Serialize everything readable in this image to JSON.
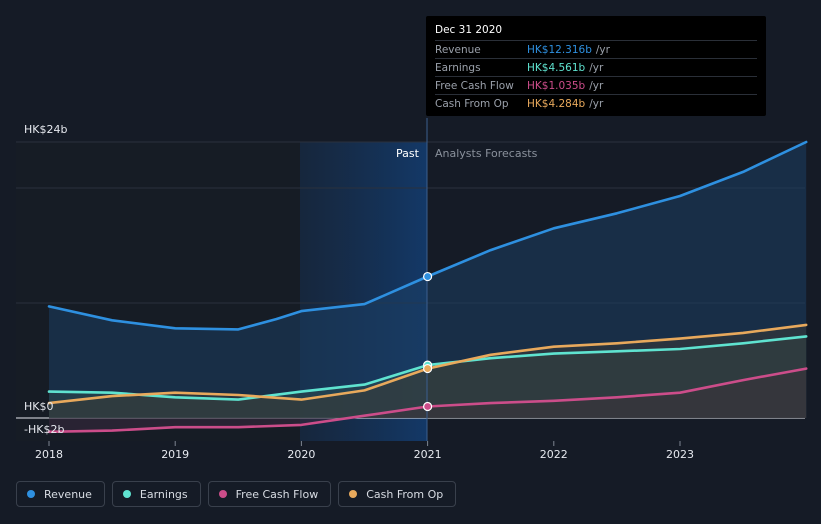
{
  "chart_data": {
    "type": "line",
    "y_axis": {
      "top_label": "HK$24b",
      "zero_label": "HK$0",
      "neg_label": "-HK$2b",
      "ylim": [
        -2,
        24
      ]
    },
    "x": [
      "2018",
      "2019",
      "2020",
      "2021",
      "2022",
      "2023"
    ],
    "divider": {
      "past_label": "Past",
      "forecast_label": "Analysts Forecasts",
      "at": "Dec 31 2020"
    },
    "series": [
      {
        "name": "Revenue",
        "color": "#2e90e0",
        "points": [
          [
            2018.0,
            9.7
          ],
          [
            2018.5,
            8.5
          ],
          [
            2019.0,
            7.8
          ],
          [
            2019.5,
            7.7
          ],
          [
            2019.8,
            8.6
          ],
          [
            2020.0,
            9.3
          ],
          [
            2020.5,
            9.9
          ],
          [
            2021.0,
            12.3
          ],
          [
            2021.5,
            14.6
          ],
          [
            2022.0,
            16.5
          ],
          [
            2022.5,
            17.8
          ],
          [
            2023.0,
            19.3
          ],
          [
            2023.5,
            21.4
          ],
          [
            2024.0,
            24.0
          ]
        ]
      },
      {
        "name": "Earnings",
        "color": "#5fe3d0",
        "points": [
          [
            2018.0,
            2.3
          ],
          [
            2018.5,
            2.2
          ],
          [
            2019.0,
            1.8
          ],
          [
            2019.5,
            1.6
          ],
          [
            2020.0,
            2.3
          ],
          [
            2020.5,
            2.9
          ],
          [
            2021.0,
            4.6
          ],
          [
            2021.5,
            5.2
          ],
          [
            2022.0,
            5.6
          ],
          [
            2022.5,
            5.8
          ],
          [
            2023.0,
            6.0
          ],
          [
            2023.5,
            6.5
          ],
          [
            2024.0,
            7.1
          ]
        ]
      },
      {
        "name": "Free Cash Flow",
        "color": "#cc4d8a",
        "points": [
          [
            2018.0,
            -1.2
          ],
          [
            2018.5,
            -1.1
          ],
          [
            2019.0,
            -0.8
          ],
          [
            2019.5,
            -0.8
          ],
          [
            2020.0,
            -0.6
          ],
          [
            2020.5,
            0.2
          ],
          [
            2021.0,
            1.0
          ],
          [
            2021.5,
            1.3
          ],
          [
            2022.0,
            1.5
          ],
          [
            2022.5,
            1.8
          ],
          [
            2023.0,
            2.2
          ],
          [
            2023.5,
            3.3
          ],
          [
            2024.0,
            4.3
          ]
        ]
      },
      {
        "name": "Cash From Op",
        "color": "#e8a95c",
        "points": [
          [
            2018.0,
            1.3
          ],
          [
            2018.5,
            1.9
          ],
          [
            2019.0,
            2.2
          ],
          [
            2019.5,
            2.0
          ],
          [
            2020.0,
            1.6
          ],
          [
            2020.5,
            2.4
          ],
          [
            2021.0,
            4.3
          ],
          [
            2021.5,
            5.5
          ],
          [
            2022.0,
            6.2
          ],
          [
            2022.5,
            6.5
          ],
          [
            2023.0,
            6.9
          ],
          [
            2023.5,
            7.4
          ],
          [
            2024.0,
            8.1
          ]
        ]
      }
    ]
  },
  "tooltip": {
    "date": "Dec 31 2020",
    "rows": [
      {
        "name": "Revenue",
        "value": "HK$12.316b",
        "unit": "/yr",
        "color": "#2e90e0"
      },
      {
        "name": "Earnings",
        "value": "HK$4.561b",
        "unit": "/yr",
        "color": "#5fe3d0"
      },
      {
        "name": "Free Cash Flow",
        "value": "HK$1.035b",
        "unit": "/yr",
        "color": "#cc4d8a"
      },
      {
        "name": "Cash From Op",
        "value": "HK$4.284b",
        "unit": "/yr",
        "color": "#e8a95c"
      }
    ]
  },
  "legend": [
    {
      "label": "Revenue",
      "color": "#2e90e0"
    },
    {
      "label": "Earnings",
      "color": "#5fe3d0"
    },
    {
      "label": "Free Cash Flow",
      "color": "#cc4d8a"
    },
    {
      "label": "Cash From Op",
      "color": "#e8a95c"
    }
  ]
}
